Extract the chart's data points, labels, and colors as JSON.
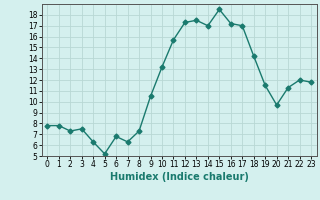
{
  "xlabel": "Humidex (Indice chaleur)",
  "x": [
    0,
    1,
    2,
    3,
    4,
    5,
    6,
    7,
    8,
    9,
    10,
    11,
    12,
    13,
    14,
    15,
    16,
    17,
    18,
    19,
    20,
    21,
    22,
    23
  ],
  "y": [
    7.8,
    7.8,
    7.3,
    7.5,
    6.3,
    5.2,
    6.8,
    6.3,
    7.3,
    10.5,
    13.2,
    15.7,
    17.3,
    17.5,
    17.0,
    18.5,
    17.2,
    17.0,
    14.2,
    11.5,
    9.7,
    11.3,
    12.0,
    11.8
  ],
  "line_color": "#1a7a6e",
  "marker": "D",
  "marker_size": 2.5,
  "bg_color": "#d4f0ee",
  "grid_color": "#b8d8d4",
  "xlim": [
    -0.5,
    23.5
  ],
  "ylim": [
    5,
    19
  ],
  "yticks": [
    5,
    6,
    7,
    8,
    9,
    10,
    11,
    12,
    13,
    14,
    15,
    16,
    17,
    18
  ],
  "xticks": [
    0,
    1,
    2,
    3,
    4,
    5,
    6,
    7,
    8,
    9,
    10,
    11,
    12,
    13,
    14,
    15,
    16,
    17,
    18,
    19,
    20,
    21,
    22,
    23
  ],
  "tick_fontsize": 5.5,
  "xlabel_fontsize": 7
}
